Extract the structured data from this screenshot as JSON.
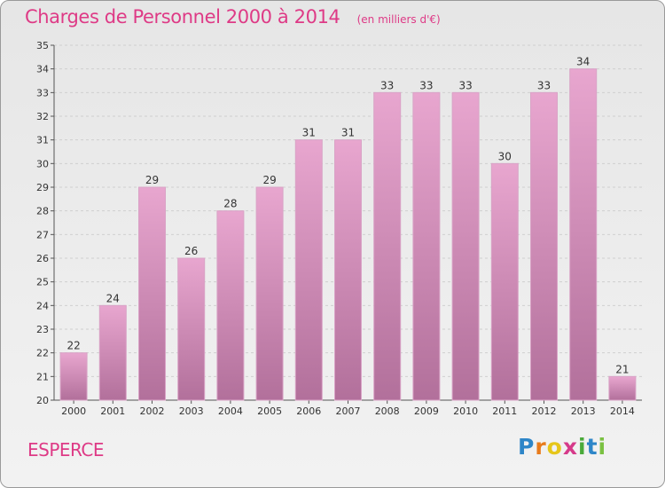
{
  "header": {
    "title": "Charges de Personnel 2000 à 2014",
    "subtitle": "(en milliers d'€)"
  },
  "footer": {
    "commune": "ESPERCE",
    "logo_letters": [
      "P",
      "r",
      "o",
      "x",
      "i",
      "t",
      "i"
    ]
  },
  "colors": {
    "accent": "#de3a86",
    "bar_top": "#e8a6cf",
    "bar_bottom": "#b2709b"
  },
  "chart_data": {
    "type": "bar",
    "title": "Charges de Personnel 2000 à 2014",
    "subtitle": "(en milliers d'€)",
    "categories": [
      "2000",
      "2001",
      "2002",
      "2003",
      "2004",
      "2005",
      "2006",
      "2007",
      "2008",
      "2009",
      "2010",
      "2011",
      "2012",
      "2013",
      "2014"
    ],
    "values": [
      22,
      24,
      29,
      26,
      28,
      29,
      31,
      31,
      33,
      33,
      33,
      30,
      33,
      34,
      21
    ],
    "ylim": [
      20,
      35
    ],
    "yticks": [
      20,
      21,
      22,
      23,
      24,
      25,
      26,
      27,
      28,
      29,
      30,
      31,
      32,
      33,
      34,
      35
    ],
    "grid": true,
    "xlabel": "",
    "ylabel": ""
  }
}
